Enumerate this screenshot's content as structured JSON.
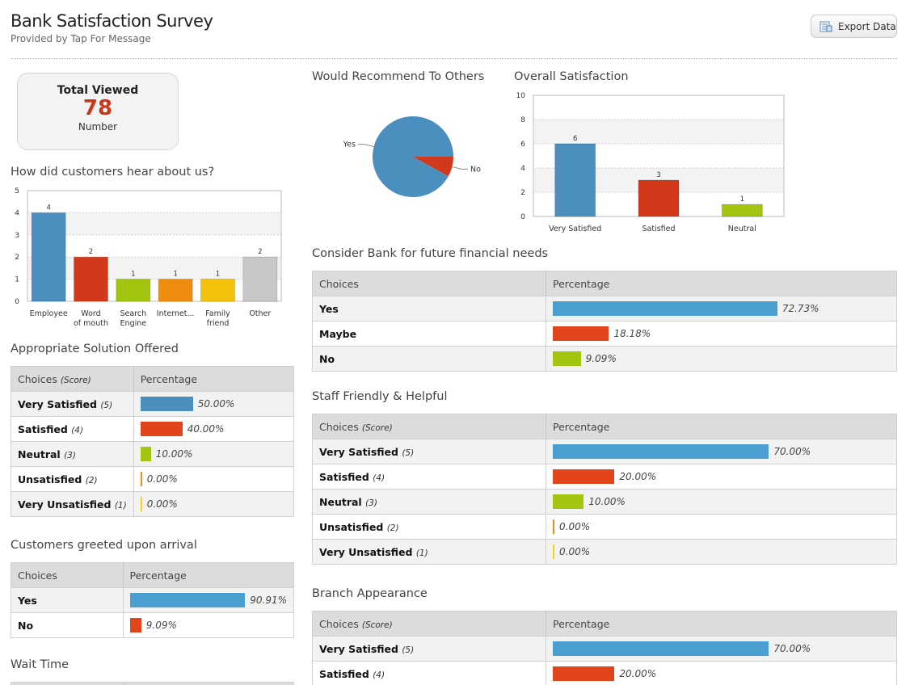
{
  "header": {
    "title": "Bank Satisfaction Survey",
    "subtitle": "Provided by Tap For Message",
    "export_label": "Export Data"
  },
  "total_viewed": {
    "title": "Total Viewed",
    "value": "78",
    "unit": "Number"
  },
  "colors": {
    "blue": "#4a8fbe",
    "red": "#d2391b",
    "green": "#a3c410",
    "orange": "#ef8d10",
    "yellow": "#f4c20d",
    "gray": "#c8c8c8"
  },
  "sections": {
    "hear": "How did customers hear about us?",
    "recommend": "Would Recommend To Others",
    "overall": "Overall Satisfaction",
    "solution": "Appropriate Solution Offered",
    "consider": "Consider Bank for future financial needs",
    "staff": "Staff Friendly & Helpful",
    "greeted": "Customers greeted upon arrival",
    "branch": "Branch Appearance",
    "wait": "Wait Time"
  },
  "table_headers": {
    "choices": "Choices",
    "score": "(Score)",
    "percentage": "Percentage"
  },
  "chart_data": [
    {
      "type": "bar",
      "categories": [
        "Employee",
        "Word of mouth",
        "Search Engine",
        "Internet...",
        "Family friend",
        "Other"
      ],
      "values": [
        4,
        2,
        1,
        1,
        1,
        2
      ],
      "ylim": [
        0,
        5
      ],
      "yticks": [
        0,
        1,
        2,
        3,
        4,
        5
      ],
      "grid": true,
      "colors": [
        "#4a8fbe",
        "#d2391b",
        "#a3c410",
        "#ef8d10",
        "#f4c20d",
        "#c8c8c8"
      ]
    },
    {
      "type": "pie",
      "categories": [
        "Yes",
        "No"
      ],
      "values": [
        92,
        8
      ],
      "colors": [
        "#4a8fbe",
        "#d2391b"
      ]
    },
    {
      "type": "bar",
      "categories": [
        "Very Satisfied",
        "Satisfied",
        "Neutral"
      ],
      "values": [
        6,
        3,
        1
      ],
      "ylim": [
        0,
        10
      ],
      "yticks": [
        0,
        2,
        4,
        6,
        8,
        10
      ],
      "grid": true,
      "colors": [
        "#4a8fbe",
        "#d2391b",
        "#a3c410"
      ]
    }
  ],
  "tables": {
    "solution": [
      {
        "choice": "Very Satisfied",
        "score": "(5)",
        "value": 50,
        "label": "50.00%",
        "color": "#4a8fbe"
      },
      {
        "choice": "Satisfied",
        "score": "(4)",
        "value": 40,
        "label": "40.00%",
        "color": "#e2451c"
      },
      {
        "choice": "Neutral",
        "score": "(3)",
        "value": 10,
        "label": "10.00%",
        "color": "#a3c410"
      },
      {
        "choice": "Unsatisfied",
        "score": "(2)",
        "value": 0,
        "label": "0.00%",
        "color": "#ef8d10"
      },
      {
        "choice": "Very Unsatisfied",
        "score": "(1)",
        "value": 0,
        "label": "0.00%",
        "color": "#f4d20d"
      }
    ],
    "greeted": [
      {
        "choice": "Yes",
        "value": 90.91,
        "label": "90.91%",
        "color": "#4a9fd0"
      },
      {
        "choice": "No",
        "value": 9.09,
        "label": "9.09%",
        "color": "#e2451c"
      }
    ],
    "consider": [
      {
        "choice": "Yes",
        "value": 72.73,
        "label": "72.73%",
        "color": "#4a9fd0"
      },
      {
        "choice": "Maybe",
        "value": 18.18,
        "label": "18.18%",
        "color": "#e2451c"
      },
      {
        "choice": "No",
        "value": 9.09,
        "label": "9.09%",
        "color": "#a3c410"
      }
    ],
    "staff": [
      {
        "choice": "Very Satisfied",
        "score": "(5)",
        "value": 70,
        "label": "70.00%",
        "color": "#4a9fd0"
      },
      {
        "choice": "Satisfied",
        "score": "(4)",
        "value": 20,
        "label": "20.00%",
        "color": "#e2451c"
      },
      {
        "choice": "Neutral",
        "score": "(3)",
        "value": 10,
        "label": "10.00%",
        "color": "#a3c410"
      },
      {
        "choice": "Unsatisfied",
        "score": "(2)",
        "value": 0,
        "label": "0.00%",
        "color": "#ef8d10"
      },
      {
        "choice": "Very Unsatisfied",
        "score": "(1)",
        "value": 0,
        "label": "0.00%",
        "color": "#f4d20d"
      }
    ],
    "branch": [
      {
        "choice": "Very Satisfied",
        "score": "(5)",
        "value": 70,
        "label": "70.00%",
        "color": "#4a9fd0"
      },
      {
        "choice": "Satisfied",
        "score": "(4)",
        "value": 20,
        "label": "20.00%",
        "color": "#e2451c"
      }
    ]
  }
}
